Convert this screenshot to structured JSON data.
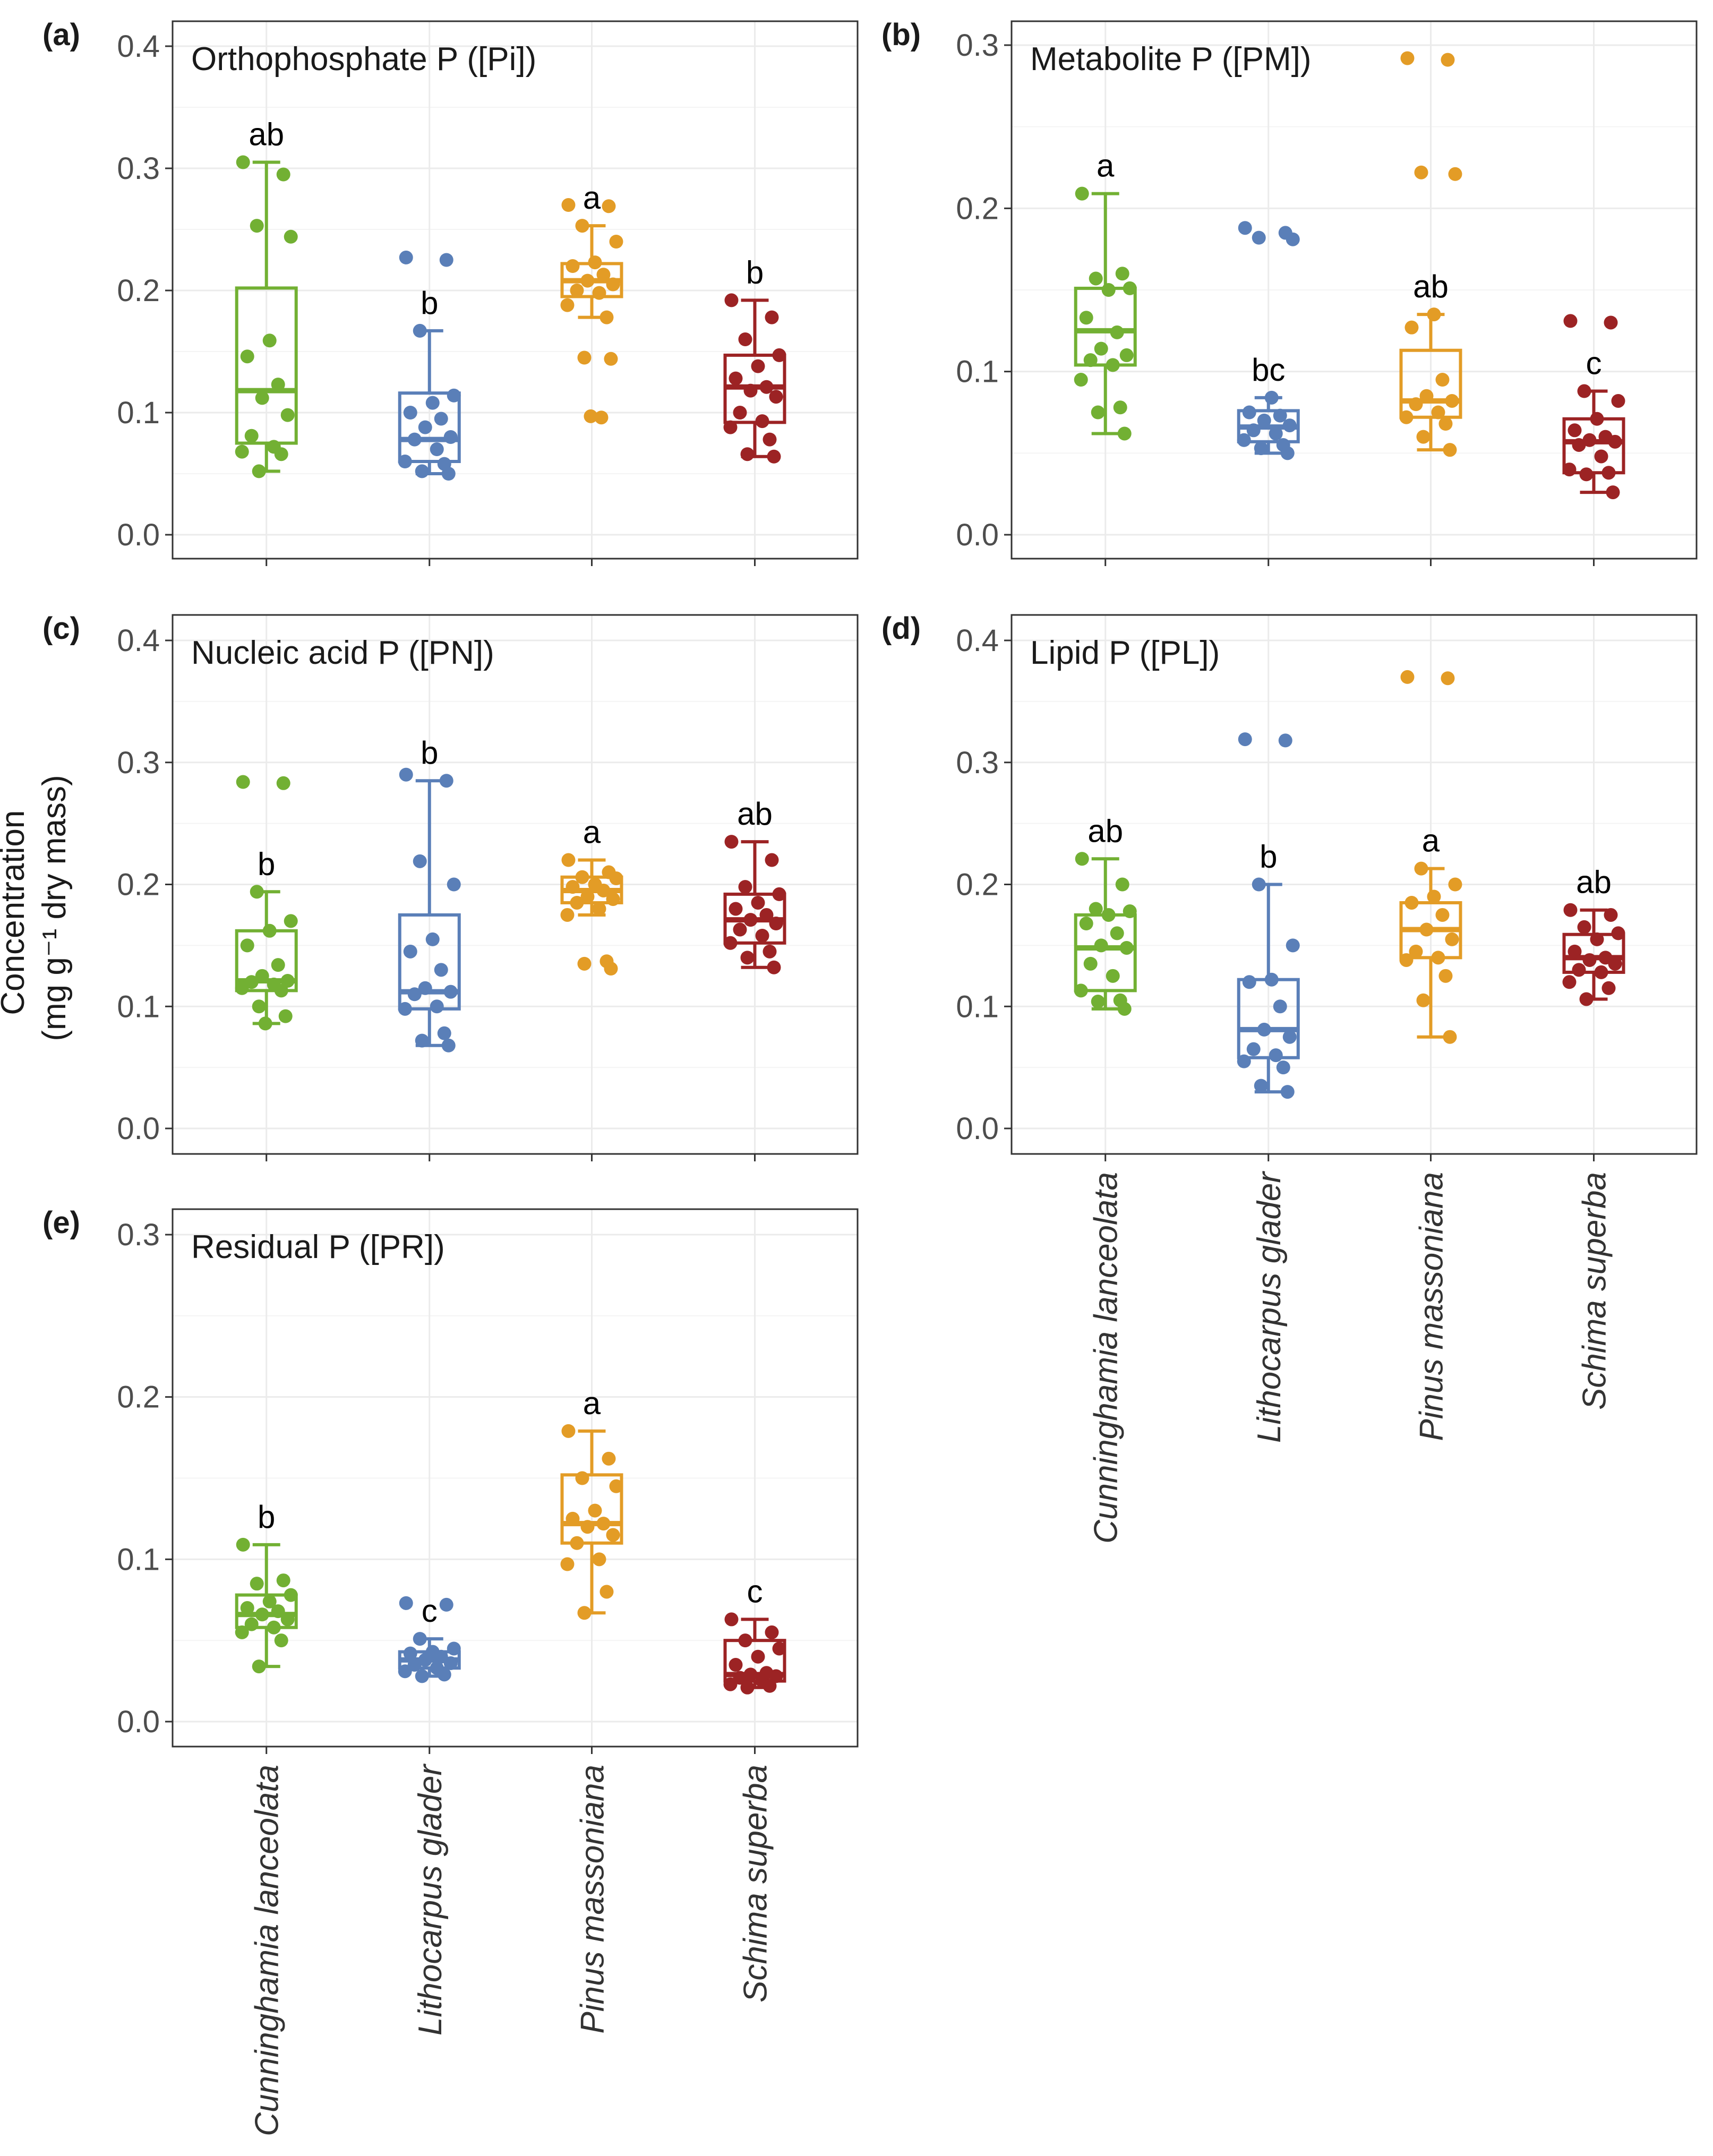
{
  "ylabel_line1": "Concentration",
  "ylabel_line2": "(mg g⁻¹ dry mass)",
  "chart_data": [
    {
      "type": "box",
      "panel": "(a)",
      "title": "Orthophosphate P ([Pi])",
      "ylim": [
        0,
        0.4
      ],
      "yticks": [
        "0.0",
        "0.1",
        "0.2",
        "0.3",
        "0.4"
      ],
      "grid": true,
      "show_categories": false,
      "categories": [
        "Cunninghamia lanceolata",
        "Lithocarpus glader",
        "Pinus massoniana",
        "Schima superba"
      ],
      "colors": [
        "#72b033",
        "#5a7fb8",
        "#e39c26",
        "#9c2324"
      ],
      "series": [
        {
          "name": "Cunninghamia lanceolata",
          "min": 0.052,
          "q1": 0.075,
          "median": 0.118,
          "q3": 0.202,
          "max": 0.305,
          "letter": "ab",
          "points": [
            0.305,
            0.295,
            0.253,
            0.244,
            0.159,
            0.146,
            0.123,
            0.112,
            0.098,
            0.081,
            0.072,
            0.068,
            0.066,
            0.052
          ]
        },
        {
          "name": "Lithocarpus glader",
          "min": 0.05,
          "q1": 0.06,
          "median": 0.078,
          "q3": 0.116,
          "max": 0.167,
          "letter": "b",
          "points": [
            0.227,
            0.225,
            0.167,
            0.114,
            0.108,
            0.1,
            0.095,
            0.088,
            0.08,
            0.078,
            0.07,
            0.06,
            0.058,
            0.052,
            0.05
          ]
        },
        {
          "name": "Pinus massoniana",
          "min": 0.178,
          "q1": 0.195,
          "median": 0.208,
          "q3": 0.222,
          "max": 0.253,
          "letter": "a",
          "points": [
            0.27,
            0.269,
            0.253,
            0.24,
            0.223,
            0.22,
            0.213,
            0.208,
            0.205,
            0.2,
            0.198,
            0.188,
            0.178,
            0.145,
            0.144,
            0.097,
            0.096
          ]
        },
        {
          "name": "Schima superba",
          "min": 0.064,
          "q1": 0.092,
          "median": 0.121,
          "q3": 0.147,
          "max": 0.192,
          "letter": "b",
          "points": [
            0.192,
            0.178,
            0.16,
            0.147,
            0.138,
            0.128,
            0.121,
            0.118,
            0.113,
            0.1,
            0.093,
            0.088,
            0.078,
            0.066,
            0.064
          ]
        }
      ]
    },
    {
      "type": "box",
      "panel": "(b)",
      "title": "Metabolite P ([PM])",
      "ylim": [
        0,
        0.3
      ],
      "yticks": [
        "0.0",
        "0.1",
        "0.2",
        "0.3"
      ],
      "grid": true,
      "show_categories": false,
      "categories": [
        "Cunninghamia lanceolata",
        "Lithocarpus glader",
        "Pinus massoniana",
        "Schima superba"
      ],
      "colors": [
        "#72b033",
        "#5a7fb8",
        "#e39c26",
        "#9c2324"
      ],
      "series": [
        {
          "name": "Cunninghamia lanceolata",
          "min": 0.062,
          "q1": 0.104,
          "median": 0.125,
          "q3": 0.151,
          "max": 0.209,
          "letter": "a",
          "points": [
            0.209,
            0.16,
            0.157,
            0.151,
            0.15,
            0.133,
            0.124,
            0.114,
            0.11,
            0.107,
            0.104,
            0.095,
            0.078,
            0.075,
            0.062
          ]
        },
        {
          "name": "Lithocarpus glader",
          "min": 0.05,
          "q1": 0.057,
          "median": 0.066,
          "q3": 0.076,
          "max": 0.084,
          "letter": "bc",
          "points": [
            0.188,
            0.185,
            0.182,
            0.181,
            0.084,
            0.075,
            0.073,
            0.07,
            0.067,
            0.064,
            0.062,
            0.058,
            0.055,
            0.053,
            0.05
          ]
        },
        {
          "name": "Pinus massoniana",
          "min": 0.052,
          "q1": 0.072,
          "median": 0.082,
          "q3": 0.113,
          "max": 0.135,
          "letter": "ab",
          "points": [
            0.292,
            0.291,
            0.222,
            0.221,
            0.135,
            0.127,
            0.095,
            0.085,
            0.082,
            0.08,
            0.075,
            0.072,
            0.068,
            0.06,
            0.052
          ]
        },
        {
          "name": "Schima superba",
          "min": 0.026,
          "q1": 0.038,
          "median": 0.057,
          "q3": 0.071,
          "max": 0.088,
          "letter": "c",
          "points": [
            0.131,
            0.13,
            0.088,
            0.082,
            0.071,
            0.064,
            0.06,
            0.058,
            0.057,
            0.055,
            0.048,
            0.04,
            0.038,
            0.037,
            0.026
          ]
        }
      ]
    },
    {
      "type": "box",
      "panel": "(c)",
      "title": "Nucleic acid P ([PN])",
      "ylim": [
        0,
        0.4
      ],
      "yticks": [
        "0.0",
        "0.1",
        "0.2",
        "0.3",
        "0.4"
      ],
      "grid": true,
      "show_categories": false,
      "categories": [
        "Cunninghamia lanceolata",
        "Lithocarpus glader",
        "Pinus massoniana",
        "Schima superba"
      ],
      "colors": [
        "#72b033",
        "#5a7fb8",
        "#e39c26",
        "#9c2324"
      ],
      "series": [
        {
          "name": "Cunninghamia lanceolata",
          "min": 0.086,
          "q1": 0.113,
          "median": 0.121,
          "q3": 0.162,
          "max": 0.194,
          "letter": "b",
          "points": [
            0.284,
            0.283,
            0.194,
            0.17,
            0.162,
            0.15,
            0.134,
            0.125,
            0.121,
            0.12,
            0.118,
            0.115,
            0.113,
            0.1,
            0.092,
            0.086
          ]
        },
        {
          "name": "Lithocarpus glader",
          "min": 0.068,
          "q1": 0.098,
          "median": 0.112,
          "q3": 0.175,
          "max": 0.285,
          "letter": "b",
          "points": [
            0.29,
            0.285,
            0.219,
            0.2,
            0.155,
            0.145,
            0.13,
            0.115,
            0.112,
            0.11,
            0.1,
            0.098,
            0.078,
            0.072,
            0.068
          ]
        },
        {
          "name": "Pinus massoniana",
          "min": 0.175,
          "q1": 0.185,
          "median": 0.195,
          "q3": 0.206,
          "max": 0.22,
          "letter": "a",
          "points": [
            0.22,
            0.21,
            0.206,
            0.205,
            0.2,
            0.198,
            0.195,
            0.19,
            0.188,
            0.185,
            0.18,
            0.175,
            0.137,
            0.135,
            0.131
          ]
        },
        {
          "name": "Schima superba",
          "min": 0.132,
          "q1": 0.152,
          "median": 0.171,
          "q3": 0.192,
          "max": 0.235,
          "letter": "ab",
          "points": [
            0.235,
            0.22,
            0.198,
            0.192,
            0.185,
            0.18,
            0.175,
            0.171,
            0.168,
            0.163,
            0.158,
            0.152,
            0.145,
            0.14,
            0.132
          ]
        }
      ]
    },
    {
      "type": "box",
      "panel": "(d)",
      "title": "Lipid P ([PL])",
      "ylim": [
        0,
        0.4
      ],
      "yticks": [
        "0.0",
        "0.1",
        "0.2",
        "0.3",
        "0.4"
      ],
      "grid": true,
      "show_categories": true,
      "categories": [
        "Cunninghamia lanceolata",
        "Lithocarpus glader",
        "Pinus massoniana",
        "Schima superba"
      ],
      "colors": [
        "#72b033",
        "#5a7fb8",
        "#e39c26",
        "#9c2324"
      ],
      "series": [
        {
          "name": "Cunninghamia lanceolata",
          "min": 0.098,
          "q1": 0.113,
          "median": 0.148,
          "q3": 0.175,
          "max": 0.221,
          "letter": "ab",
          "points": [
            0.221,
            0.2,
            0.18,
            0.178,
            0.175,
            0.168,
            0.16,
            0.15,
            0.148,
            0.135,
            0.125,
            0.113,
            0.105,
            0.104,
            0.098
          ]
        },
        {
          "name": "Lithocarpus glader",
          "min": 0.03,
          "q1": 0.058,
          "median": 0.081,
          "q3": 0.122,
          "max": 0.2,
          "letter": "b",
          "points": [
            0.319,
            0.318,
            0.2,
            0.15,
            0.122,
            0.12,
            0.1,
            0.081,
            0.075,
            0.065,
            0.06,
            0.055,
            0.05,
            0.035,
            0.03
          ]
        },
        {
          "name": "Pinus massoniana",
          "min": 0.075,
          "q1": 0.14,
          "median": 0.163,
          "q3": 0.185,
          "max": 0.213,
          "letter": "a",
          "points": [
            0.37,
            0.369,
            0.213,
            0.2,
            0.19,
            0.185,
            0.175,
            0.163,
            0.155,
            0.145,
            0.14,
            0.138,
            0.125,
            0.105,
            0.075
          ]
        },
        {
          "name": "Schima superba",
          "min": 0.106,
          "q1": 0.128,
          "median": 0.14,
          "q3": 0.159,
          "max": 0.179,
          "letter": "ab",
          "points": [
            0.179,
            0.175,
            0.165,
            0.16,
            0.155,
            0.145,
            0.14,
            0.138,
            0.135,
            0.13,
            0.128,
            0.12,
            0.115,
            0.106
          ]
        }
      ]
    },
    {
      "type": "box",
      "panel": "(e)",
      "title": "Residual P ([PR])",
      "ylim": [
        0,
        0.3
      ],
      "yticks": [
        "0.0",
        "0.1",
        "0.2",
        "0.3"
      ],
      "grid": true,
      "show_categories": true,
      "categories": [
        "Cunninghamia lanceolata",
        "Lithocarpus glader",
        "Pinus massoniana",
        "Schima superba"
      ],
      "colors": [
        "#72b033",
        "#5a7fb8",
        "#e39c26",
        "#9c2324"
      ],
      "series": [
        {
          "name": "Cunninghamia lanceolata",
          "min": 0.034,
          "q1": 0.058,
          "median": 0.066,
          "q3": 0.078,
          "max": 0.109,
          "letter": "b",
          "points": [
            0.109,
            0.087,
            0.085,
            0.078,
            0.074,
            0.07,
            0.068,
            0.066,
            0.063,
            0.06,
            0.058,
            0.055,
            0.05,
            0.034
          ]
        },
        {
          "name": "Lithocarpus glader",
          "min": 0.028,
          "q1": 0.033,
          "median": 0.038,
          "q3": 0.043,
          "max": 0.051,
          "letter": "c",
          "points": [
            0.073,
            0.072,
            0.051,
            0.045,
            0.043,
            0.042,
            0.04,
            0.038,
            0.036,
            0.035,
            0.033,
            0.031,
            0.029,
            0.028
          ]
        },
        {
          "name": "Pinus massoniana",
          "min": 0.067,
          "q1": 0.11,
          "median": 0.122,
          "q3": 0.152,
          "max": 0.179,
          "letter": "a",
          "points": [
            0.179,
            0.162,
            0.15,
            0.145,
            0.13,
            0.125,
            0.122,
            0.12,
            0.115,
            0.11,
            0.1,
            0.097,
            0.08,
            0.067
          ]
        },
        {
          "name": "Schima superba",
          "min": 0.021,
          "q1": 0.025,
          "median": 0.029,
          "q3": 0.05,
          "max": 0.063,
          "letter": "c",
          "points": [
            0.063,
            0.055,
            0.05,
            0.045,
            0.04,
            0.035,
            0.03,
            0.029,
            0.028,
            0.027,
            0.025,
            0.023,
            0.022,
            0.021
          ]
        }
      ]
    }
  ]
}
